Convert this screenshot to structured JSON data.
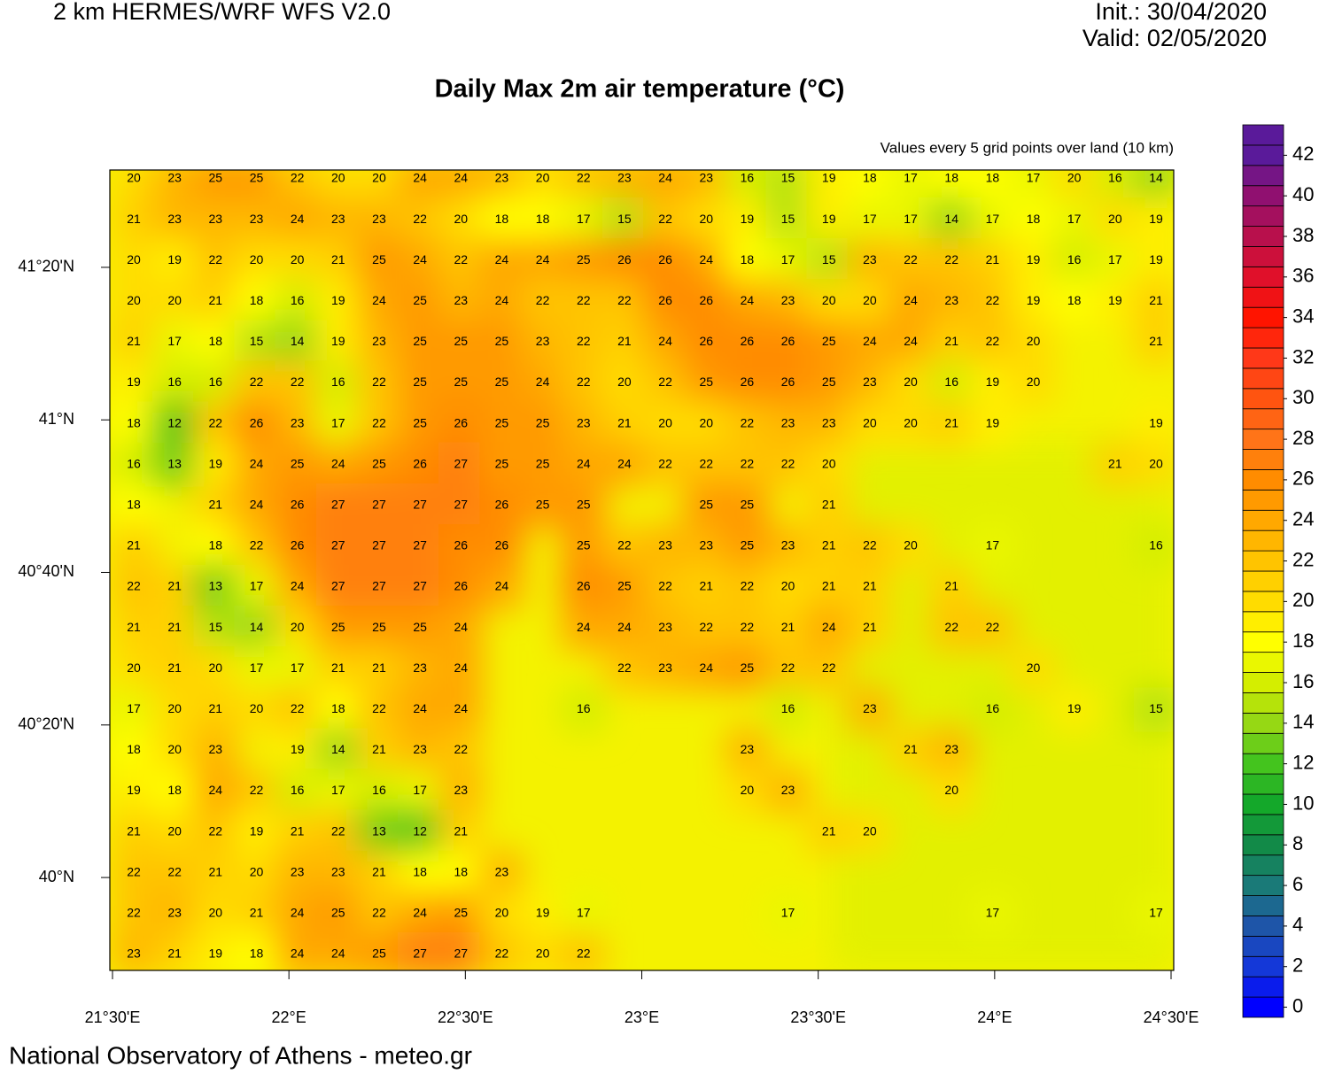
{
  "header": {
    "model": "2 km HERMES/WRF WFS V2.0",
    "init": "Init.: 30/04/2020",
    "valid": "Valid: 02/05/2020"
  },
  "title": "Daily Max 2m air temperature (°C)",
  "subtitle": "Values every 5 grid points over land (10 km)",
  "footer": "National Observatory of Athens - meteo.gr",
  "map": {
    "lon_lim": [
      21.4925,
      24.5075
    ],
    "lat_lim": [
      39.797,
      41.546
    ],
    "lon_ticks": [
      {
        "value": 21.5,
        "label": "21°30'E"
      },
      {
        "value": 22,
        "label": "22°E"
      },
      {
        "value": 22.5,
        "label": "22°30'E"
      },
      {
        "value": 23,
        "label": "23°E"
      },
      {
        "value": 23.5,
        "label": "23°30'E"
      },
      {
        "value": 24,
        "label": "24°E"
      },
      {
        "value": 24.5,
        "label": "24°30'E"
      }
    ],
    "lat_ticks": [
      {
        "value": 41.3333,
        "label": "41°20'N"
      },
      {
        "value": 41,
        "label": "41°N"
      },
      {
        "value": 40.6667,
        "label": "40°40'N"
      },
      {
        "value": 40.3333,
        "label": "40°20'N"
      },
      {
        "value": 40,
        "label": "40°N"
      }
    ],
    "grid": [
      [
        20,
        23,
        25,
        25,
        22,
        20,
        20,
        24,
        24,
        23,
        20,
        22,
        23,
        24,
        23,
        16,
        15,
        19,
        18,
        17,
        18,
        18,
        17,
        20,
        16,
        14
      ],
      [
        21,
        23,
        23,
        23,
        24,
        23,
        23,
        22,
        20,
        18,
        18,
        17,
        15,
        22,
        20,
        19,
        15,
        19,
        17,
        17,
        14,
        17,
        18,
        17,
        20,
        19
      ],
      [
        20,
        19,
        22,
        20,
        20,
        21,
        25,
        24,
        22,
        24,
        24,
        25,
        26,
        26,
        24,
        18,
        17,
        15,
        23,
        22,
        22,
        21,
        19,
        16,
        17,
        19
      ],
      [
        20,
        20,
        21,
        18,
        16,
        19,
        24,
        25,
        23,
        24,
        22,
        22,
        22,
        26,
        26,
        24,
        23,
        20,
        20,
        24,
        23,
        22,
        19,
        18,
        19,
        21
      ],
      [
        21,
        17,
        18,
        15,
        14,
        19,
        23,
        25,
        25,
        25,
        23,
        22,
        21,
        24,
        26,
        26,
        26,
        25,
        24,
        24,
        21,
        22,
        20,
        null,
        null,
        21
      ],
      [
        19,
        16,
        16,
        22,
        22,
        16,
        22,
        25,
        25,
        25,
        24,
        22,
        20,
        22,
        25,
        26,
        26,
        25,
        23,
        20,
        16,
        19,
        20,
        null,
        null,
        null
      ],
      [
        18,
        12,
        22,
        26,
        23,
        17,
        22,
        25,
        26,
        25,
        25,
        23,
        21,
        20,
        20,
        22,
        23,
        23,
        20,
        20,
        21,
        19,
        null,
        null,
        null,
        19
      ],
      [
        16,
        13,
        19,
        24,
        25,
        24,
        25,
        26,
        27,
        25,
        25,
        24,
        24,
        22,
        22,
        22,
        22,
        20,
        null,
        null,
        null,
        null,
        null,
        null,
        21,
        20
      ],
      [
        18,
        null,
        21,
        24,
        26,
        27,
        27,
        27,
        27,
        26,
        25,
        25,
        null,
        null,
        25,
        25,
        null,
        21,
        null,
        null,
        null,
        null,
        null,
        null,
        null,
        null
      ],
      [
        21,
        null,
        18,
        22,
        26,
        27,
        27,
        27,
        26,
        26,
        null,
        25,
        22,
        23,
        23,
        25,
        23,
        21,
        22,
        20,
        null,
        17,
        null,
        null,
        null,
        16
      ],
      [
        22,
        21,
        13,
        17,
        24,
        27,
        27,
        27,
        26,
        24,
        null,
        26,
        25,
        22,
        21,
        22,
        20,
        21,
        21,
        null,
        21,
        null,
        null,
        null,
        null,
        null
      ],
      [
        21,
        21,
        15,
        14,
        20,
        25,
        25,
        25,
        24,
        null,
        null,
        24,
        24,
        23,
        22,
        22,
        21,
        24,
        21,
        null,
        22,
        22,
        null,
        null,
        null,
        null
      ],
      [
        20,
        21,
        20,
        17,
        17,
        21,
        21,
        23,
        24,
        null,
        null,
        null,
        22,
        23,
        24,
        25,
        22,
        22,
        null,
        null,
        null,
        null,
        20,
        null,
        null,
        null
      ],
      [
        17,
        20,
        21,
        20,
        22,
        18,
        22,
        24,
        24,
        null,
        null,
        16,
        null,
        null,
        null,
        null,
        16,
        null,
        23,
        null,
        null,
        16,
        null,
        19,
        null,
        15
      ],
      [
        18,
        20,
        23,
        null,
        19,
        14,
        21,
        23,
        22,
        null,
        null,
        null,
        null,
        null,
        null,
        23,
        null,
        null,
        null,
        21,
        23,
        null,
        null,
        null,
        null,
        null
      ],
      [
        19,
        18,
        24,
        22,
        16,
        17,
        16,
        17,
        23,
        null,
        null,
        null,
        null,
        null,
        null,
        20,
        23,
        null,
        null,
        null,
        20,
        null,
        null,
        null,
        null,
        null
      ],
      [
        21,
        20,
        22,
        19,
        21,
        22,
        13,
        12,
        21,
        null,
        null,
        null,
        null,
        null,
        null,
        null,
        null,
        21,
        20,
        null,
        null,
        null,
        null,
        null,
        null,
        null
      ],
      [
        22,
        22,
        21,
        20,
        23,
        23,
        21,
        18,
        18,
        23,
        null,
        null,
        null,
        null,
        null,
        null,
        null,
        null,
        null,
        null,
        null,
        null,
        null,
        null,
        null,
        null
      ],
      [
        22,
        23,
        20,
        21,
        24,
        25,
        22,
        24,
        25,
        20,
        19,
        17,
        null,
        null,
        null,
        null,
        17,
        null,
        null,
        null,
        null,
        17,
        null,
        null,
        null,
        17
      ],
      [
        23,
        21,
        19,
        18,
        24,
        24,
        25,
        27,
        27,
        22,
        20,
        22,
        null,
        null,
        null,
        null,
        null,
        null,
        null,
        null,
        null,
        null,
        null,
        null,
        null,
        null
      ]
    ]
  },
  "colorbar": {
    "lim": [
      -0.5,
      43.5
    ],
    "ticks": [
      0,
      2,
      4,
      6,
      8,
      10,
      12,
      14,
      16,
      18,
      20,
      22,
      24,
      26,
      28,
      30,
      32,
      34,
      36,
      38,
      40,
      42
    ],
    "colors": [
      "#0000ff",
      "#1438d8",
      "#1e55a8",
      "#1a7a78",
      "#128a48",
      "#14a82a",
      "#44c41e",
      "#96d814",
      "#d4ee00",
      "#ffff00",
      "#ffdc00",
      "#ffc400",
      "#ffa800",
      "#ff8c00",
      "#ff7418",
      "#ff5410",
      "#ff3818",
      "#ff1400",
      "#e0102a",
      "#b8104c",
      "#901070",
      "#5a1a9a"
    ]
  }
}
